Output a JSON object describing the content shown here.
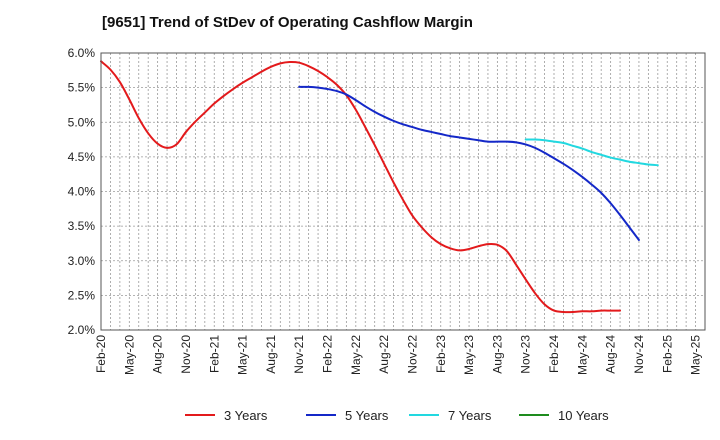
{
  "chart_data": {
    "type": "line",
    "title": "[9651]  Trend of StDev of Operating Cashflow Margin",
    "xlabel": "",
    "ylabel": "",
    "ylim": [
      2.0,
      6.0
    ],
    "yticks": [
      2.0,
      2.5,
      3.0,
      3.5,
      4.0,
      4.5,
      5.0,
      5.5,
      6.0
    ],
    "ytick_labels": [
      "2.0%",
      "2.5%",
      "3.0%",
      "3.5%",
      "4.0%",
      "4.5%",
      "5.0%",
      "5.5%",
      "6.0%"
    ],
    "x_start": "Feb-20",
    "x_count": 64,
    "xtick_labels": [
      "Feb-20",
      "May-20",
      "Aug-20",
      "Nov-20",
      "Feb-21",
      "May-21",
      "Aug-21",
      "Nov-21",
      "Feb-22",
      "May-22",
      "Aug-22",
      "Nov-22",
      "Feb-23",
      "May-23",
      "Aug-23",
      "Nov-23",
      "Feb-24",
      "May-24",
      "Aug-24",
      "Nov-24",
      "Feb-25",
      "May-25"
    ],
    "grid": true,
    "legend_position": "bottom",
    "series": [
      {
        "name": "3 Years",
        "color": "#e31a1c",
        "start_index": 0,
        "values": [
          5.88,
          5.76,
          5.58,
          5.33,
          5.06,
          4.84,
          4.69,
          4.63,
          4.68,
          4.86,
          5.01,
          5.14,
          5.27,
          5.38,
          5.48,
          5.57,
          5.65,
          5.73,
          5.8,
          5.85,
          5.87,
          5.86,
          5.81,
          5.74,
          5.65,
          5.54,
          5.39,
          5.18,
          4.93,
          4.67,
          4.4,
          4.13,
          3.88,
          3.65,
          3.48,
          3.34,
          3.24,
          3.18,
          3.15,
          3.17,
          3.21,
          3.24,
          3.23,
          3.14,
          2.94,
          2.73,
          2.53,
          2.37,
          2.28,
          2.26,
          2.26,
          2.27,
          2.27,
          2.28,
          2.28,
          2.28
        ]
      },
      {
        "name": "5 Years",
        "color": "#1428c8",
        "start_index": 21,
        "values": [
          5.51,
          5.51,
          5.5,
          5.48,
          5.45,
          5.4,
          5.32,
          5.23,
          5.15,
          5.08,
          5.02,
          4.97,
          4.93,
          4.89,
          4.86,
          4.83,
          4.8,
          4.78,
          4.76,
          4.74,
          4.72,
          4.72,
          4.72,
          4.71,
          4.68,
          4.63,
          4.56,
          4.48,
          4.4,
          4.31,
          4.21,
          4.1,
          3.98,
          3.83,
          3.66,
          3.48,
          3.3
        ]
      },
      {
        "name": "7 Years",
        "color": "#22d8e0",
        "start_index": 45,
        "values": [
          4.75,
          4.75,
          4.74,
          4.72,
          4.7,
          4.66,
          4.62,
          4.57,
          4.53,
          4.49,
          4.46,
          4.43,
          4.41,
          4.39,
          4.38
        ]
      },
      {
        "name": "10 Years",
        "color": "#1e8c1e",
        "start_index": 0,
        "values": []
      }
    ]
  }
}
